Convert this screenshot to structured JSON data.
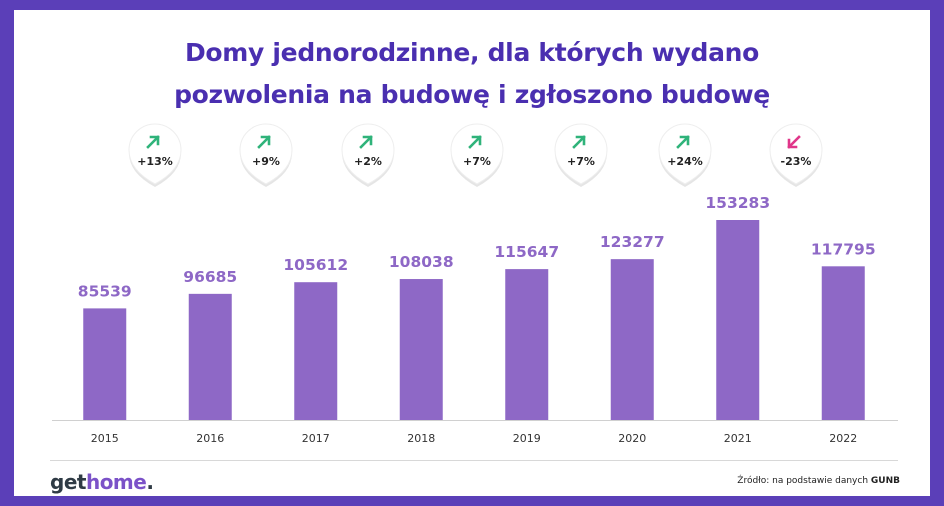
{
  "title_line1": "Domy jednorodzinne, dla których wydano",
  "title_line2": "pozwolenia na budowę i zgłoszono budowę",
  "logo": {
    "part1": "get",
    "part2": "home",
    "part3": "."
  },
  "source": {
    "prefix": "Źródło: na podstawie danych ",
    "name": "GUNB"
  },
  "colors": {
    "frame": "#5b3fb8",
    "title": "#4a2fb0",
    "bar": "#8e68c6",
    "value_label": "#8e68c6",
    "up_arrow": "#2fb37a",
    "down_arrow": "#e0368a"
  },
  "chart_data": {
    "type": "bar",
    "categories": [
      "2015",
      "2016",
      "2017",
      "2018",
      "2019",
      "2020",
      "2021",
      "2022"
    ],
    "values": [
      85539,
      96685,
      105612,
      108038,
      115647,
      123277,
      153283,
      117795
    ],
    "changes": [
      {
        "label": "+13%",
        "direction": "up"
      },
      {
        "label": "+9%",
        "direction": "up"
      },
      {
        "label": "+2%",
        "direction": "up"
      },
      {
        "label": "+7%",
        "direction": "up"
      },
      {
        "label": "+7%",
        "direction": "up"
      },
      {
        "label": "+24%",
        "direction": "up"
      },
      {
        "label": "-23%",
        "direction": "down"
      }
    ],
    "title": "Domy jednorodzinne, dla których wydano pozwolenia na budowę i zgłoszono budowę",
    "xlabel": "",
    "ylabel": "",
    "ylim": [
      0,
      153283
    ],
    "grid": false,
    "legend": "none"
  }
}
